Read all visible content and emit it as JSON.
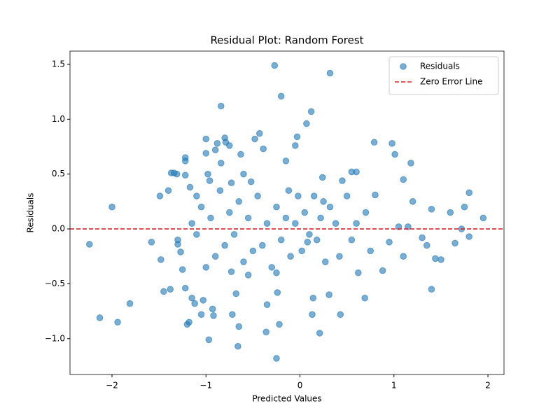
{
  "chart_data": {
    "type": "scatter",
    "title": "Residual Plot: Random Forest",
    "x_label": "Predicted Values",
    "y_label": "Residuals",
    "x": [
      -2.24,
      -2.13,
      -2.0,
      -1.94,
      -1.81,
      -1.58,
      -1.49,
      -1.48,
      -1.45,
      -1.4,
      -1.38,
      -1.37,
      -1.34,
      -1.31,
      -1.3,
      -1.3,
      -1.27,
      -1.25,
      -1.22,
      -1.22,
      -1.22,
      -1.22,
      -1.2,
      -1.18,
      -1.17,
      -1.15,
      -1.12,
      -1.1,
      -1.05,
      -1.03,
      -1.0,
      -1.0,
      -0.98,
      -0.97,
      -0.96,
      -0.93,
      -0.92,
      -0.9,
      -0.88,
      -0.84,
      -0.84,
      -0.8,
      -0.79,
      -0.75,
      -0.73,
      -0.73,
      -0.72,
      -0.68,
      -0.66,
      -0.65,
      -0.63,
      -0.6,
      -0.55,
      -0.52,
      -0.48,
      -0.43,
      -0.39,
      -0.36,
      -0.35,
      -0.27,
      -0.25,
      -0.24,
      -0.22,
      -0.2,
      -0.15,
      -0.05,
      -0.03,
      0.07,
      0.12,
      0.13,
      0.14,
      0.21,
      0.24,
      0.31,
      0.32,
      0.43,
      0.45,
      0.55,
      0.6,
      0.69,
      0.79,
      0.98,
      1.01,
      1.1,
      1.18,
      1.4,
      1.8,
      1.95,
      1.8,
      1.72,
      1.65,
      1.5,
      1.44,
      1.35,
      1.3,
      1.2,
      1.15,
      1.1,
      1.05,
      0.95,
      0.88,
      0.8,
      0.75,
      0.7,
      0.62,
      0.55,
      0.5,
      0.42,
      0.38,
      0.32,
      0.27,
      0.22,
      0.18,
      0.15,
      0.1,
      0.05,
      0.02,
      -0.02,
      -0.05,
      -0.1,
      -0.15,
      -0.2,
      -0.25,
      -0.3,
      -0.35,
      -0.4,
      -0.45,
      -0.5,
      -0.55,
      -0.6,
      -0.65,
      -0.7,
      -0.75,
      -0.8,
      -0.85,
      -0.9,
      -0.95,
      -1.0,
      -1.05,
      -1.1,
      -1.15,
      -0.25,
      0.25,
      0.6,
      1.6,
      1.75,
      1.4,
      -0.12,
      0.08
    ],
    "series": [
      {
        "name": "Residuals",
        "color": "#1f77b4",
        "values": [
          -0.14,
          -0.81,
          0.2,
          -0.85,
          -0.68,
          -0.12,
          0.3,
          -0.28,
          -0.57,
          0.35,
          -0.55,
          0.51,
          0.51,
          0.5,
          -0.1,
          -0.14,
          -0.21,
          -0.37,
          0.62,
          0.65,
          0.49,
          -0.54,
          -0.87,
          -0.85,
          0.38,
          -0.63,
          -0.68,
          0.3,
          -0.78,
          -0.65,
          0.82,
          0.69,
          0.5,
          -1.01,
          0.44,
          -0.73,
          -0.79,
          0.72,
          0.78,
          1.12,
          0.6,
          0.83,
          0.79,
          0.76,
          -0.39,
          0.42,
          -0.78,
          -0.59,
          -1.07,
          -0.89,
          0.68,
          0.5,
          -0.42,
          0.43,
          0.82,
          0.87,
          0.73,
          -0.94,
          -0.69,
          1.49,
          -1.18,
          -0.58,
          -0.87,
          1.21,
          0.62,
          0.76,
          0.84,
          0.96,
          1.07,
          -0.78,
          -0.63,
          -0.95,
          0.47,
          -0.6,
          1.42,
          -0.78,
          0.44,
          0.52,
          0.52,
          -0.63,
          0.79,
          0.78,
          0.68,
          0.45,
          0.6,
          -0.55,
          0.33,
          0.1,
          -0.07,
          0.0,
          -0.13,
          -0.28,
          -0.27,
          -0.15,
          -0.08,
          0.25,
          0.02,
          -0.25,
          0.02,
          -0.12,
          -0.38,
          0.31,
          -0.2,
          0.15,
          -0.4,
          -0.1,
          0.3,
          -0.25,
          0.05,
          0.2,
          -0.3,
          0.1,
          -0.1,
          0.3,
          -0.05,
          0.15,
          -0.2,
          0.3,
          0.05,
          -0.25,
          0.1,
          -0.1,
          0.2,
          -0.35,
          0.05,
          -0.15,
          0.3,
          -0.2,
          0.1,
          -0.3,
          0.25,
          -0.05,
          0.15,
          -0.15,
          0.35,
          -0.25,
          0.1,
          -0.35,
          0.2,
          -0.05,
          0.05,
          -0.4,
          0.25,
          0.05,
          0.15,
          0.2,
          0.18,
          0.35,
          -0.12
        ]
      }
    ],
    "reference_line": {
      "name": "Zero Error Line",
      "value": 0,
      "color": "#d62728"
    },
    "xlim": [
      -2.447,
      2.171
    ],
    "ylim": [
      -1.327,
      1.621
    ],
    "xticks": [
      {
        "value": -2,
        "label": "−2"
      },
      {
        "value": -1,
        "label": "−1"
      },
      0,
      1,
      2
    ],
    "yticks": [
      {
        "value": -1.0,
        "label": "−1.0"
      },
      {
        "value": -0.5,
        "label": "−0.5"
      },
      {
        "value": 0.0,
        "label": "0.0"
      },
      {
        "value": 0.5,
        "label": "0.5"
      },
      {
        "value": 1.0,
        "label": "1.0"
      },
      {
        "value": 1.5,
        "label": "1.5"
      }
    ],
    "legend": "upper right"
  }
}
